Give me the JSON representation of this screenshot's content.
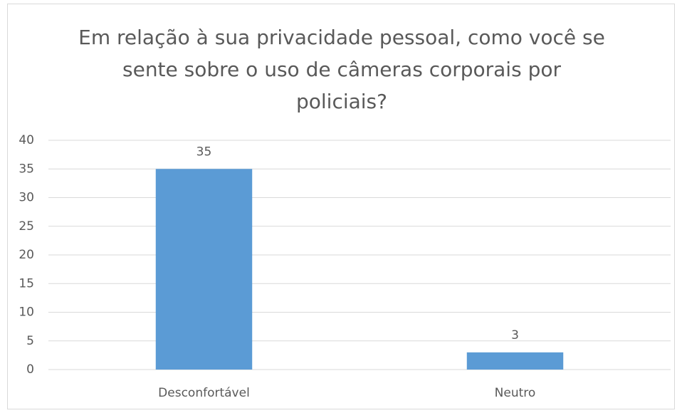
{
  "chart_data": {
    "type": "bar",
    "title": "Em relação à sua privacidade pessoal, como você se sente sobre o uso de câmeras corporais por policiais?",
    "categories": [
      "Desconfortável",
      "Neutro"
    ],
    "values": [
      35,
      3
    ],
    "color": "#5b9bd5",
    "ylim": [
      0,
      40
    ],
    "yticks": [
      0,
      5,
      10,
      15,
      20,
      25,
      30,
      35,
      40
    ],
    "grid": true
  }
}
